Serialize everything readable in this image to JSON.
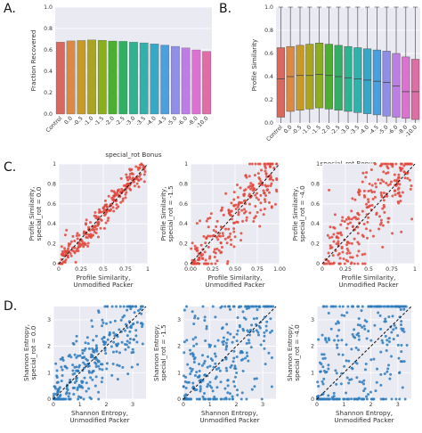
{
  "panel_letters": [
    "A.",
    "B.",
    "C.",
    "D."
  ],
  "chart_data": [
    {
      "id": "A",
      "type": "bar",
      "xlabel": "special_rot Bonus",
      "ylabel": "Fraction Recovered",
      "ylim": [
        0,
        1.0
      ],
      "yticks": [
        "0.0",
        "0.2",
        "0.4",
        "0.6",
        "0.8",
        "1.0"
      ],
      "categories": [
        "Control",
        "0.0",
        "-0.5",
        "-1.0",
        "-1.5",
        "-2.0",
        "-2.5",
        "-3.0",
        "-3.5",
        "-4.0",
        "-4.5",
        "-5.0",
        "-6.0",
        "-8.0",
        "-10.0"
      ],
      "values": [
        0.672,
        0.684,
        0.688,
        0.693,
        0.69,
        0.683,
        0.68,
        0.672,
        0.666,
        0.656,
        0.645,
        0.633,
        0.618,
        0.6,
        0.585
      ],
      "colors": [
        "#d9695f",
        "#db8a44",
        "#c79a26",
        "#a9a521",
        "#8bae1f",
        "#4eae32",
        "#31b065",
        "#2fb28f",
        "#31b0ac",
        "#33a9c7",
        "#4aa0df",
        "#8f8fe8",
        "#bd7ee3",
        "#dc72cf",
        "#e06da6"
      ],
      "grid": true
    },
    {
      "id": "B",
      "type": "box",
      "xlabel": "special_rot Bonus",
      "ylabel": "Profile Similarity",
      "ylim": [
        0,
        1.0
      ],
      "yticks": [
        "0.0",
        "0.2",
        "0.4",
        "0.6",
        "0.8",
        "1.0"
      ],
      "categories": [
        "Control",
        "0.0",
        "-0.5",
        "-1.0",
        "-1.5",
        "-2.0",
        "-2.5",
        "-3.0",
        "-3.5",
        "-4.0",
        "-4.5",
        "-5.0",
        "-6.0",
        "-8.0",
        "-10.0"
      ],
      "boxes": [
        {
          "q1": 0.05,
          "median": 0.38,
          "q3": 0.65,
          "whisker_low": 0.0,
          "whisker_high": 1.0
        },
        {
          "q1": 0.1,
          "median": 0.4,
          "q3": 0.66,
          "whisker_low": 0.0,
          "whisker_high": 1.0
        },
        {
          "q1": 0.11,
          "median": 0.41,
          "q3": 0.67,
          "whisker_low": 0.0,
          "whisker_high": 1.0
        },
        {
          "q1": 0.12,
          "median": 0.41,
          "q3": 0.68,
          "whisker_low": 0.0,
          "whisker_high": 1.0
        },
        {
          "q1": 0.13,
          "median": 0.42,
          "q3": 0.69,
          "whisker_low": 0.0,
          "whisker_high": 1.0
        },
        {
          "q1": 0.12,
          "median": 0.41,
          "q3": 0.68,
          "whisker_low": 0.0,
          "whisker_high": 1.0
        },
        {
          "q1": 0.11,
          "median": 0.4,
          "q3": 0.67,
          "whisker_low": 0.0,
          "whisker_high": 1.0
        },
        {
          "q1": 0.1,
          "median": 0.39,
          "q3": 0.66,
          "whisker_low": 0.0,
          "whisker_high": 1.0
        },
        {
          "q1": 0.09,
          "median": 0.38,
          "q3": 0.65,
          "whisker_low": 0.0,
          "whisker_high": 1.0
        },
        {
          "q1": 0.08,
          "median": 0.37,
          "q3": 0.64,
          "whisker_low": 0.0,
          "whisker_high": 1.0
        },
        {
          "q1": 0.07,
          "median": 0.36,
          "q3": 0.63,
          "whisker_low": 0.0,
          "whisker_high": 1.0
        },
        {
          "q1": 0.06,
          "median": 0.35,
          "q3": 0.62,
          "whisker_low": 0.0,
          "whisker_high": 1.0
        },
        {
          "q1": 0.05,
          "median": 0.32,
          "q3": 0.6,
          "whisker_low": 0.0,
          "whisker_high": 1.0
        },
        {
          "q1": 0.04,
          "median": 0.27,
          "q3": 0.57,
          "whisker_low": 0.0,
          "whisker_high": 1.0
        },
        {
          "q1": 0.03,
          "median": 0.27,
          "q3": 0.55,
          "whisker_low": 0.0,
          "whisker_high": 1.0
        }
      ],
      "colors": [
        "#d9695f",
        "#db8a44",
        "#c79a26",
        "#a9a521",
        "#8bae1f",
        "#4eae32",
        "#31b065",
        "#2fb28f",
        "#31b0ac",
        "#33a9c7",
        "#4aa0df",
        "#8f8fe8",
        "#bd7ee3",
        "#dc72cf",
        "#e06da6"
      ],
      "grid": true
    },
    {
      "id": "C1",
      "type": "scatter",
      "xlabel": "Profile Similarity,\nUnmodified Packer",
      "ylabel": "Profile Similarity,\nspecial_rot = 0.0",
      "xlim": [
        0,
        1
      ],
      "ylim": [
        0,
        1
      ],
      "xticks": [
        "0",
        "0.25",
        "0.5",
        "0.75",
        "1"
      ],
      "yticks": [
        "0",
        "0.2",
        "0.4",
        "0.6",
        "0.8",
        "1"
      ],
      "point_color": "#e0463b",
      "n_points": 260,
      "spread": 0.07,
      "seed": 11,
      "reference_line": "y = x",
      "grid": true
    },
    {
      "id": "C2",
      "type": "scatter",
      "xlabel": "Profile Similarity,\nUnmodified Packer",
      "ylabel": "Profile Similarity,\nspecial_rot = -1.5",
      "xlim": [
        0,
        1
      ],
      "ylim": [
        0,
        1
      ],
      "xticks": [
        "0.00",
        "0.25",
        "0.50",
        "0.75",
        "1.00"
      ],
      "yticks": [
        "0",
        "0.2",
        "0.4",
        "0.6",
        "0.8",
        "1"
      ],
      "point_color": "#e0463b",
      "n_points": 260,
      "spread": 0.16,
      "seed": 23,
      "reference_line": "y = x",
      "grid": true
    },
    {
      "id": "C3",
      "type": "scatter",
      "xlabel": "Profile Similarity,\nUnmodified Packer",
      "ylabel": "Profile Similarity,\nspecial_rot = -4.0",
      "xlim": [
        0,
        1
      ],
      "ylim": [
        0,
        1
      ],
      "xticks": [
        "0",
        "0.25",
        "0.5",
        "0.75",
        "1"
      ],
      "yticks": [
        "0",
        "0.2",
        "0.4",
        "0.6",
        "0.8",
        "1"
      ],
      "point_color": "#e0463b",
      "n_points": 260,
      "spread": 0.22,
      "seed": 37,
      "reference_line": "y = x",
      "grid": true
    },
    {
      "id": "D1",
      "type": "scatter",
      "xlabel": "Shannon Entropy,\nUnmodified Packer",
      "ylabel": "Shannon Entropy,\nspecial_rot = 0.0",
      "xlim": [
        0,
        3.5
      ],
      "ylim": [
        0,
        3.5
      ],
      "xticks": [
        "0",
        "1",
        "2",
        "3"
      ],
      "yticks": [
        "0",
        "1",
        "2",
        "3"
      ],
      "point_color": "#2b7bbd",
      "n_points": 300,
      "spread": 0.22,
      "seed": 5,
      "reference_line": "y = x",
      "grid": true
    },
    {
      "id": "D2",
      "type": "scatter",
      "xlabel": "Shannon Entropy,\nUnmodified Packer",
      "ylabel": "Shannon Entropy,\nspecial_rot = -1.5",
      "xlim": [
        0,
        3.5
      ],
      "ylim": [
        0,
        3.5
      ],
      "xticks": [
        "0",
        "1",
        "2",
        "3"
      ],
      "yticks": [
        "0",
        "1",
        "2",
        "3"
      ],
      "point_color": "#2b7bbd",
      "n_points": 300,
      "spread": 0.4,
      "seed": 17,
      "reference_line": "y = x",
      "grid": true
    },
    {
      "id": "D3",
      "type": "scatter",
      "xlabel": "Shannon Entropy,\nUnmodified Packer",
      "ylabel": "Shannon Entropy,\nspecial_rot = -4.0",
      "xlim": [
        0,
        3.5
      ],
      "ylim": [
        0,
        3.5
      ],
      "xticks": [
        "0",
        "1",
        "2",
        "3"
      ],
      "yticks": [
        "0",
        "1",
        "2",
        "3"
      ],
      "point_color": "#2b7bbd",
      "n_points": 300,
      "spread": 0.6,
      "seed": 29,
      "reference_line": "y = x",
      "grid": true
    }
  ]
}
